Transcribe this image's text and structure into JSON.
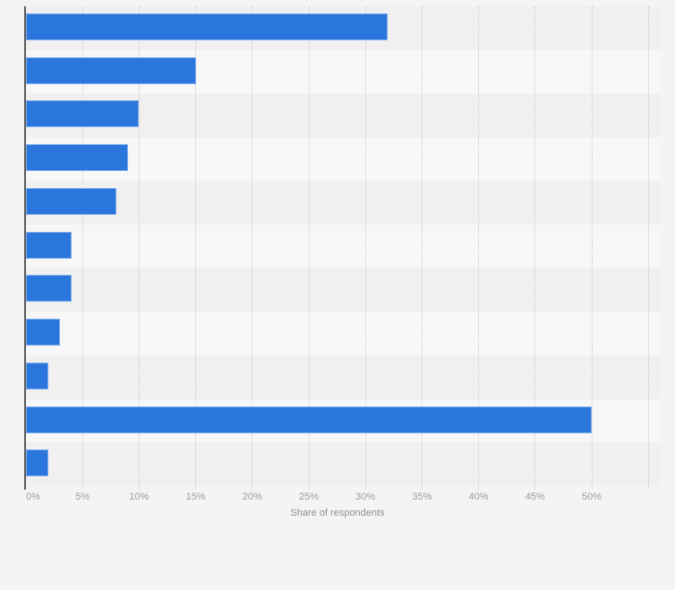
{
  "chart_data": {
    "type": "bar",
    "orientation": "horizontal",
    "title": "",
    "xlabel": "Share of respondents",
    "ylabel": "",
    "categories_visible": false,
    "values": [
      32,
      15,
      10,
      9,
      8,
      4,
      4,
      3,
      2,
      50,
      2
    ],
    "unit": "%",
    "x_ticks": [
      "0%",
      "5%",
      "10%",
      "15%",
      "20%",
      "25%",
      "30%",
      "35%",
      "40%",
      "45%",
      "50%"
    ],
    "x_tick_values": [
      0,
      5,
      10,
      15,
      20,
      25,
      30,
      35,
      40,
      45,
      50
    ],
    "xlim": [
      0,
      56.2
    ],
    "gridline_interval": 5,
    "grid": true,
    "legend": false,
    "colors": {
      "bar": "#2b76dd",
      "row_stripe_odd": "#f0f0f0",
      "row_stripe_even": "#f7f7f7",
      "gridline": "#cacaca",
      "axis_line": "#5a5a5a",
      "tick_label": "#9b9b9b",
      "axis_title": "#8c9093",
      "background": "#f4f4f4"
    }
  }
}
